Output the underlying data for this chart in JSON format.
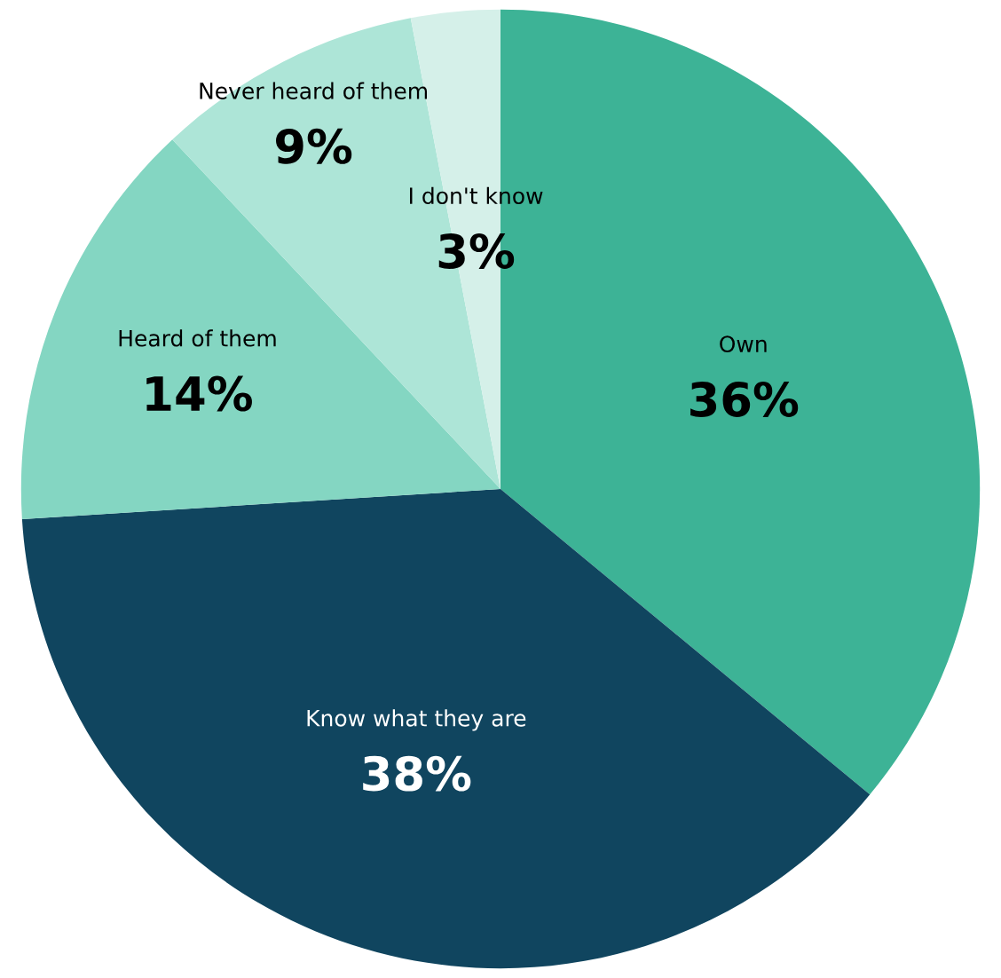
{
  "chart_data": {
    "type": "pie",
    "categories": [
      "Own",
      "Know what they are",
      "Heard of them",
      "Never heard of them",
      "I don't know"
    ],
    "values": [
      36,
      38,
      14,
      9,
      3
    ],
    "colors": [
      "#3db396",
      "#10455f",
      "#84d6c2",
      "#ade5d7",
      "#d5f0e9"
    ],
    "value_labels": [
      "36%",
      "38%",
      "14%",
      "9%",
      "3%"
    ],
    "legend": false
  }
}
